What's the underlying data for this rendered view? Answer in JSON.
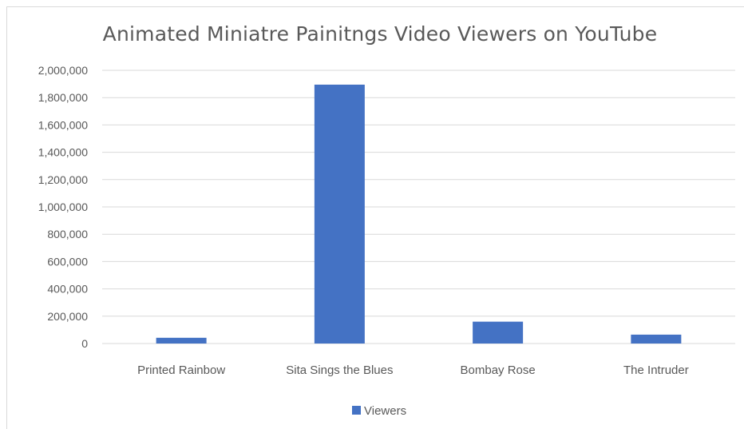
{
  "chart_data": {
    "type": "bar",
    "title": "Animated Miniatre Painitngs Video Viewers on YouTube",
    "categories": [
      "Printed Rainbow",
      "Sita Sings the Blues",
      "Bombay Rose",
      "The Intruder"
    ],
    "series": [
      {
        "name": "Viewers",
        "color": "#4472c4",
        "values": [
          42000,
          1895000,
          160000,
          65000
        ]
      }
    ],
    "yticks": [
      "0",
      "200,000",
      "400,000",
      "600,000",
      "800,000",
      "1,000,000",
      "1,200,000",
      "1,400,000",
      "1,600,000",
      "1,800,000",
      "2,000,000"
    ],
    "ylim": [
      0,
      2000000
    ],
    "grid": true,
    "legend": "bottom",
    "gridline_color": "#d9d9d9"
  }
}
